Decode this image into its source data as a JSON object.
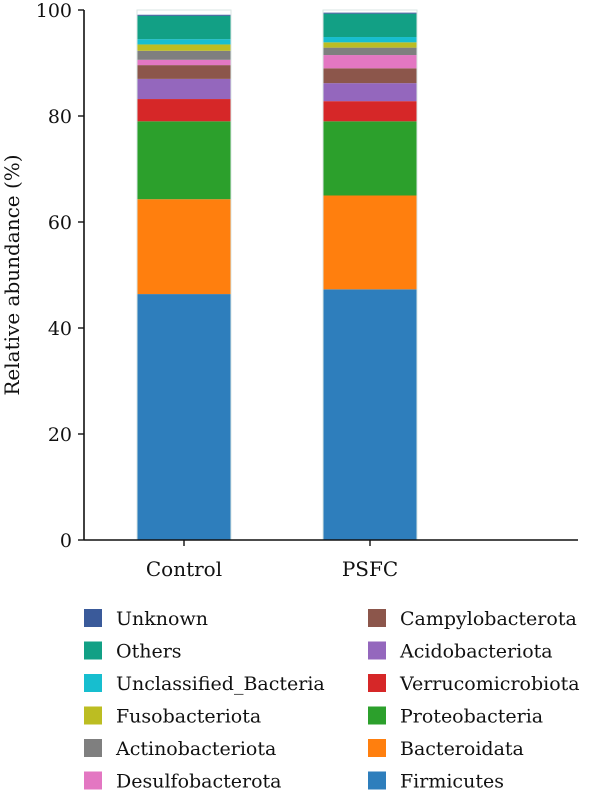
{
  "chart_data": {
    "type": "bar",
    "stacked": true,
    "title": "",
    "xlabel": "",
    "ylabel": "Relative abundance (%)",
    "ylim": [
      0,
      100
    ],
    "yticks": [
      0,
      20,
      40,
      60,
      80,
      100
    ],
    "categories": [
      "Control",
      "PSFC"
    ],
    "series": [
      {
        "name": "Firmicutes",
        "color": "#2e7ebc",
        "values": [
          46.4,
          47.3
        ]
      },
      {
        "name": "Bacteroidata",
        "color": "#ff7f0e",
        "values": [
          17.9,
          17.7
        ]
      },
      {
        "name": "Proteobacteria",
        "color": "#2ca02c",
        "values": [
          14.7,
          14.0
        ]
      },
      {
        "name": "Verrucomicrobiota",
        "color": "#d62728",
        "values": [
          4.2,
          3.8
        ]
      },
      {
        "name": "Acidobacteriota",
        "color": "#9467bd",
        "values": [
          3.8,
          3.4
        ]
      },
      {
        "name": "Campylobacterota",
        "color": "#8c564b",
        "values": [
          2.6,
          2.8
        ]
      },
      {
        "name": "Desulfobacterota",
        "color": "#e377c2",
        "values": [
          1.0,
          2.5
        ]
      },
      {
        "name": "Actinobacteriota",
        "color": "#7f7f7f",
        "values": [
          1.7,
          1.4
        ]
      },
      {
        "name": "Fusobacteriota",
        "color": "#bcbd22",
        "values": [
          1.2,
          1.0
        ]
      },
      {
        "name": "Unclassified_Bacteria",
        "color": "#17becf",
        "values": [
          1.0,
          1.0
        ]
      },
      {
        "name": "Others",
        "color": "#12a085",
        "values": [
          4.4,
          4.4
        ]
      },
      {
        "name": "Unknown",
        "color": "#3a5a9a",
        "values": [
          0.2,
          0.2
        ]
      }
    ],
    "legend": {
      "placement": "bottom",
      "columns": [
        [
          "Unknown",
          "Others",
          "Unclassified_Bacteria",
          "Fusobacteriota",
          "Actinobacteriota",
          "Desulfobacterota"
        ],
        [
          "Campylobacterota",
          "Acidobacteriota",
          "Verrucomicrobiota",
          "Proteobacteria",
          "Bacteroidata",
          "Firmicutes"
        ]
      ]
    },
    "grid": false
  }
}
